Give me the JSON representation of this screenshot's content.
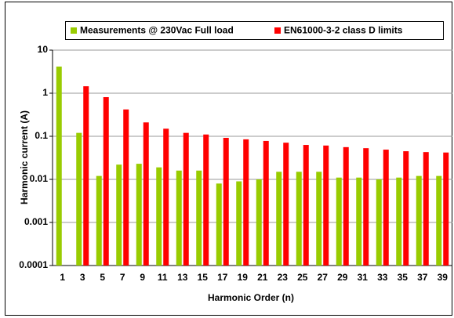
{
  "chart_data": {
    "type": "bar",
    "x_label": "Harmonic Order (n)",
    "y_label": "Harmonic current (A)",
    "categories": [
      "1",
      "3",
      "5",
      "7",
      "9",
      "11",
      "13",
      "15",
      "17",
      "19",
      "21",
      "23",
      "25",
      "27",
      "29",
      "31",
      "33",
      "35",
      "37",
      "39"
    ],
    "series": [
      {
        "name": "Measurements @ 230Vac Full load",
        "color": "#99cc00",
        "values": [
          4.15,
          0.12,
          0.012,
          0.022,
          0.023,
          0.019,
          0.016,
          0.016,
          0.008,
          0.009,
          0.01,
          0.015,
          0.015,
          0.015,
          0.011,
          0.011,
          0.01,
          0.011,
          0.012,
          0.012
        ]
      },
      {
        "name": "EN61000-3-2 class D limits",
        "color": "#ff0000",
        "values": [
          null,
          1.45,
          0.81,
          0.42,
          0.21,
          0.15,
          0.12,
          0.11,
          0.092,
          0.085,
          0.078,
          0.071,
          0.063,
          0.061,
          0.056,
          0.053,
          0.049,
          0.045,
          0.043,
          0.042
        ]
      }
    ],
    "ylim": [
      0.0001,
      10
    ],
    "yticks": [
      10,
      1,
      0.1,
      0.01,
      0.001,
      0.0001
    ],
    "log_y": true,
    "grid": true,
    "legend": "top"
  }
}
